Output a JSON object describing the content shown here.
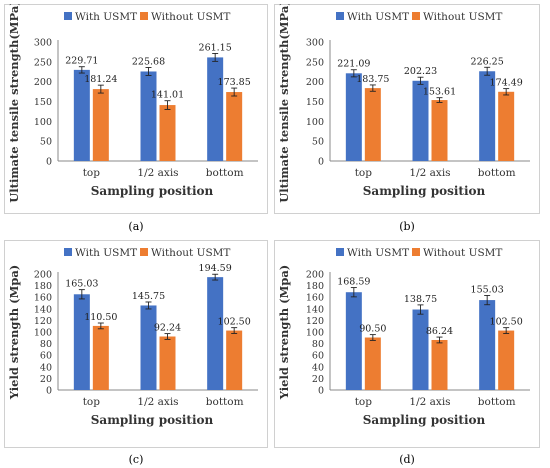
{
  "colors": {
    "with": "#4472c4",
    "without": "#ed7d31",
    "axis": "#888888",
    "grid": "#d9d9d9"
  },
  "chart_data": [
    {
      "type": "bar",
      "caption": "(a)",
      "categories": [
        "top",
        "1/2 axis",
        "bottom"
      ],
      "series": [
        {
          "name": "With USMT",
          "values": [
            229.71,
            225.68,
            261.15
          ],
          "labels": [
            "229.71",
            "225.68",
            "261.15"
          ],
          "errors": [
            8,
            10,
            10
          ]
        },
        {
          "name": "Without USMT",
          "values": [
            181.24,
            141.01,
            173.85
          ],
          "labels": [
            "181.24",
            "141.01",
            "173.85"
          ],
          "errors": [
            10,
            11,
            10
          ]
        }
      ],
      "xlabel": "Sampling position",
      "ylabel": "Ultimate tensile strength(MPa)",
      "ylim": [
        0,
        300
      ],
      "yticks": [
        0,
        50,
        100,
        150,
        200,
        250,
        300
      ],
      "legend": "top"
    },
    {
      "type": "bar",
      "caption": "(b)",
      "categories": [
        "top",
        "1/2 axis",
        "bottom"
      ],
      "series": [
        {
          "name": "With USMT",
          "values": [
            221.09,
            202.23,
            226.25
          ],
          "labels": [
            "221.09",
            "202.23",
            "226.25"
          ],
          "errors": [
            9,
            9,
            10
          ]
        },
        {
          "name": "Without USMT",
          "values": [
            183.75,
            153.61,
            174.49
          ],
          "labels": [
            "183.75",
            "153.61",
            "174.49"
          ],
          "errors": [
            8,
            6,
            8
          ]
        }
      ],
      "xlabel": "Sampling position",
      "ylabel": "Ultimate tensile strength(MPa)",
      "ylim": [
        0,
        300
      ],
      "yticks": [
        0,
        50,
        100,
        150,
        200,
        250,
        300
      ],
      "legend": "top"
    },
    {
      "type": "bar",
      "caption": "(c)",
      "categories": [
        "top",
        "1/2 axis",
        "bottom"
      ],
      "series": [
        {
          "name": "With USMT",
          "values": [
            165.03,
            145.75,
            194.59
          ],
          "labels": [
            "165.03",
            "145.75",
            "194.59"
          ],
          "errors": [
            8,
            6,
            5
          ]
        },
        {
          "name": "Without USMT",
          "values": [
            110.5,
            92.24,
            102.5
          ],
          "labels": [
            "110.50",
            "92.24",
            "102.50"
          ],
          "errors": [
            5,
            5,
            5
          ]
        }
      ],
      "xlabel": "Sampling position",
      "ylabel": "Yield strength (Mpa)",
      "ylim": [
        0,
        200
      ],
      "yticks": [
        0,
        20,
        40,
        60,
        80,
        100,
        120,
        140,
        160,
        180,
        200
      ],
      "legend": "top"
    },
    {
      "type": "bar",
      "caption": "(d)",
      "categories": [
        "top",
        "1/2 axis",
        "bottom"
      ],
      "series": [
        {
          "name": "With USMT",
          "values": [
            168.59,
            138.75,
            155.03
          ],
          "labels": [
            "168.59",
            "138.75",
            "155.03"
          ],
          "errors": [
            8,
            8,
            8
          ]
        },
        {
          "name": "Without USMT",
          "values": [
            90.5,
            86.24,
            102.5
          ],
          "labels": [
            "90.50",
            "86.24",
            "102.50"
          ],
          "errors": [
            5,
            5,
            5
          ]
        }
      ],
      "xlabel": "Sampling position",
      "ylabel": "Yield strength (Mpa)",
      "ylim": [
        0,
        200
      ],
      "yticks": [
        0,
        20,
        40,
        60,
        80,
        100,
        120,
        140,
        160,
        180,
        200
      ],
      "legend": "top"
    }
  ]
}
